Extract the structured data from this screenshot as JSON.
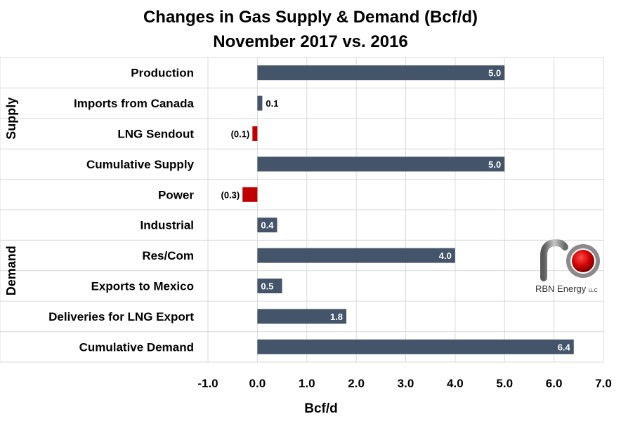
{
  "chart_data": {
    "type": "bar",
    "orientation": "horizontal",
    "title": "Changes in Gas Supply & Demand (Bcf/d)",
    "subtitle": "November 2017 vs. 2016",
    "xlabel": "Bcf/d",
    "xlim": [
      -1.0,
      7.0
    ],
    "xticks": [
      "-1.0",
      "0.0",
      "1.0",
      "2.0",
      "3.0",
      "4.0",
      "5.0",
      "6.0",
      "7.0"
    ],
    "grid": true,
    "groups": [
      {
        "name": "Supply",
        "categories": [
          "Production",
          "Imports from Canada",
          "LNG Sendout",
          "Cumulative Supply"
        ]
      },
      {
        "name": "Demand",
        "categories": [
          "Power",
          "Industrial",
          "Res/Com",
          "Exports to Mexico",
          "Deliveries for LNG Export",
          "Cumulative Demand"
        ]
      }
    ],
    "categories": [
      "Production",
      "Imports from Canada",
      "LNG Sendout",
      "Cumulative Supply",
      "Power",
      "Industrial",
      "Res/Com",
      "Exports to Mexico",
      "Deliveries for LNG Export",
      "Cumulative Demand"
    ],
    "values": [
      5.0,
      0.1,
      -0.1,
      5.0,
      -0.3,
      0.4,
      4.0,
      0.5,
      1.8,
      6.4
    ],
    "data_labels": [
      "5.0",
      "0.1",
      "(0.1)",
      "5.0",
      "(0.3)",
      "0.4",
      "4.0",
      "0.5",
      "1.8",
      "6.4"
    ],
    "colors": {
      "positive": "#44546a",
      "negative": "#c00000",
      "grid": "#d9d9d9",
      "label_inside": "#ffffff"
    }
  },
  "logo": {
    "name": "RBN Energy",
    "suffix": "LLC"
  }
}
